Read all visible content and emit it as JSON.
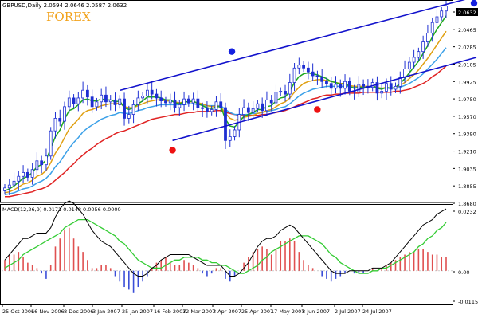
{
  "header": {
    "symbol_info": "GBPUSD,Daily  2.0594 2.0646 2.0587 2.0632",
    "brand": "FOREX"
  },
  "colors": {
    "background": "#ffffff",
    "frame": "#000000",
    "grid": "#c0c0c0",
    "candle": "#1e2fd2",
    "channel": "#1212cc",
    "ma_fast": "#1ea81e",
    "ma_mid": "#e0a012",
    "ma_slow": "#3aa0e8",
    "ma_slowest": "#e02222",
    "macd_line": "#000000",
    "signal_line": "#33cc33",
    "hist_positive": "#e05050",
    "hist_negative": "#3a4ed8",
    "pivot_high": "#1420e0",
    "pivot_low": "#ee1111",
    "brand": "#f2a21a"
  },
  "chart_data": [
    {
      "type": "line",
      "title": "GBPUSD,Daily",
      "ohlc_last": {
        "open": 2.0594,
        "high": 2.0646,
        "low": 2.0587,
        "close": 2.0632
      },
      "ylim": [
        1.86,
        2.066
      ],
      "y_ticks": [
        "2.0632",
        "2.0465",
        "2.0285",
        "2.0105",
        "1.9925",
        "1.9750",
        "1.9570",
        "1.9390",
        "1.9210",
        "1.9035",
        "1.8855",
        "1.8680"
      ],
      "x_ticks": [
        "25 Oct 2006",
        "16 Nov 2006",
        "8 Dec 2006",
        "3 Jan 2007",
        "25 Jan 2007",
        "16 Feb 2007",
        "12 Mar 2007",
        "3 Apr 2007",
        "25 Apr 2007",
        "17 May 2007",
        "8 Jun 2007",
        "2 Jul 2007",
        "24 Jul 2007"
      ],
      "close_series": [
        1.875,
        1.878,
        1.882,
        1.887,
        1.891,
        1.886,
        1.894,
        1.903,
        1.899,
        1.908,
        1.934,
        1.947,
        1.944,
        1.959,
        1.968,
        1.962,
        1.968,
        1.976,
        1.969,
        1.959,
        1.964,
        1.971,
        1.964,
        1.966,
        1.961,
        1.967,
        1.947,
        1.951,
        1.961,
        1.968,
        1.97,
        1.976,
        1.972,
        1.968,
        1.965,
        1.963,
        1.966,
        1.958,
        1.961,
        1.967,
        1.963,
        1.967,
        1.958,
        1.957,
        1.954,
        1.956,
        1.964,
        1.958,
        1.924,
        1.928,
        1.935,
        1.951,
        1.958,
        1.953,
        1.957,
        1.962,
        1.955,
        1.966,
        1.963,
        1.974,
        1.975,
        1.972,
        1.984,
        1.999,
        2.002,
        1.999,
        1.995,
        1.991,
        1.99,
        1.985,
        1.983,
        1.978,
        1.982,
        1.978,
        1.985,
        1.975,
        1.974,
        1.982,
        1.98,
        1.979,
        1.984,
        1.973,
        1.975,
        1.983,
        1.977,
        1.98,
        1.989,
        1.998,
        2.005,
        2.01,
        2.016,
        2.026,
        2.035,
        2.046,
        2.052,
        2.058,
        2.063
      ],
      "moving_averages": {
        "fast": [
          1.872,
          1.874,
          1.877,
          1.881,
          1.885,
          1.887,
          1.891,
          1.897,
          1.899,
          1.904,
          1.916,
          1.928,
          1.935,
          1.946,
          1.955,
          1.957,
          1.961,
          1.966,
          1.967,
          1.965,
          1.965,
          1.967,
          1.966,
          1.966,
          1.964,
          1.965,
          1.958,
          1.956,
          1.958,
          1.962,
          1.965,
          1.969,
          1.969,
          1.969,
          1.968,
          1.966,
          1.966,
          1.963,
          1.962,
          1.964,
          1.964,
          1.965,
          1.962,
          1.96,
          1.958,
          1.957,
          1.959,
          1.959,
          1.946,
          1.939,
          1.938,
          1.943,
          1.949,
          1.951,
          1.953,
          1.956,
          1.956,
          1.959,
          1.96,
          1.965,
          1.968,
          1.969,
          1.975,
          1.984,
          1.99,
          1.993,
          1.994,
          1.993,
          1.992,
          1.99,
          1.988,
          1.985,
          1.984,
          1.982,
          1.983,
          1.98,
          1.978,
          1.979,
          1.979,
          1.979,
          1.981,
          1.978,
          1.977,
          1.979,
          1.978,
          1.979,
          1.983,
          1.988,
          1.994,
          2.0,
          2.006,
          2.014,
          2.022,
          2.031,
          2.039,
          2.046,
          2.053
        ],
        "mid": [
          1.87,
          1.871,
          1.873,
          1.876,
          1.879,
          1.88,
          1.883,
          1.887,
          1.889,
          1.893,
          1.901,
          1.911,
          1.918,
          1.927,
          1.936,
          1.941,
          1.946,
          1.952,
          1.955,
          1.956,
          1.958,
          1.96,
          1.961,
          1.962,
          1.962,
          1.963,
          1.959,
          1.958,
          1.958,
          1.96,
          1.962,
          1.964,
          1.965,
          1.966,
          1.966,
          1.965,
          1.965,
          1.964,
          1.963,
          1.964,
          1.964,
          1.964,
          1.963,
          1.962,
          1.96,
          1.959,
          1.96,
          1.959,
          1.952,
          1.947,
          1.945,
          1.946,
          1.948,
          1.949,
          1.95,
          1.952,
          1.953,
          1.955,
          1.956,
          1.959,
          1.962,
          1.964,
          1.968,
          1.974,
          1.979,
          1.983,
          1.985,
          1.986,
          1.987,
          1.987,
          1.986,
          1.985,
          1.984,
          1.983,
          1.983,
          1.981,
          1.98,
          1.98,
          1.98,
          1.98,
          1.98,
          1.979,
          1.978,
          1.979,
          1.978,
          1.979,
          1.981,
          1.984,
          1.988,
          1.992,
          1.997,
          2.003,
          2.009,
          2.016,
          2.023,
          2.03,
          2.037
        ],
        "slow": [
          1.868,
          1.869,
          1.87,
          1.872,
          1.874,
          1.875,
          1.877,
          1.88,
          1.882,
          1.885,
          1.89,
          1.897,
          1.902,
          1.909,
          1.916,
          1.922,
          1.927,
          1.933,
          1.937,
          1.94,
          1.943,
          1.946,
          1.948,
          1.95,
          1.951,
          1.953,
          1.952,
          1.952,
          1.953,
          1.955,
          1.956,
          1.958,
          1.959,
          1.96,
          1.961,
          1.961,
          1.961,
          1.961,
          1.961,
          1.961,
          1.962,
          1.962,
          1.961,
          1.961,
          1.96,
          1.96,
          1.96,
          1.96,
          1.956,
          1.953,
          1.951,
          1.951,
          1.951,
          1.951,
          1.952,
          1.952,
          1.953,
          1.954,
          1.955,
          1.956,
          1.958,
          1.959,
          1.962,
          1.966,
          1.97,
          1.973,
          1.975,
          1.977,
          1.978,
          1.979,
          1.98,
          1.98,
          1.98,
          1.98,
          1.98,
          1.98,
          1.979,
          1.979,
          1.979,
          1.979,
          1.979,
          1.979,
          1.978,
          1.978,
          1.978,
          1.978,
          1.979,
          1.981,
          1.983,
          1.986,
          1.989,
          1.993,
          1.998,
          2.003,
          2.008,
          2.014,
          2.02
        ],
        "slowest": [
          1.866,
          1.866,
          1.867,
          1.868,
          1.869,
          1.87,
          1.871,
          1.873,
          1.874,
          1.876,
          1.879,
          1.883,
          1.887,
          1.891,
          1.896,
          1.9,
          1.905,
          1.909,
          1.913,
          1.916,
          1.92,
          1.923,
          1.926,
          1.928,
          1.931,
          1.933,
          1.934,
          1.936,
          1.938,
          1.94,
          1.942,
          1.944,
          1.946,
          1.947,
          1.948,
          1.949,
          1.95,
          1.951,
          1.951,
          1.952,
          1.953,
          1.953,
          1.954,
          1.954,
          1.954,
          1.954,
          1.955,
          1.955,
          1.953,
          1.952,
          1.951,
          1.95,
          1.95,
          1.95,
          1.95,
          1.95,
          1.951,
          1.951,
          1.952,
          1.953,
          1.954,
          1.955,
          1.957,
          1.959,
          1.961,
          1.963,
          1.965,
          1.967,
          1.968,
          1.97,
          1.971,
          1.971,
          1.972,
          1.972,
          1.973,
          1.973,
          1.973,
          1.973,
          1.974,
          1.974,
          1.974,
          1.974,
          1.974,
          1.974,
          1.974,
          1.975,
          1.975,
          1.976,
          1.977,
          1.979,
          1.981,
          1.983,
          1.986,
          1.99,
          1.993,
          1.997,
          2.001
        ]
      },
      "channel": {
        "upper_start": [
          0.25,
          1.976
        ],
        "upper_end": [
          1.0,
          2.073
        ],
        "lower_start": [
          0.36,
          1.924
        ],
        "lower_end": [
          1.0,
          2.01
        ]
      },
      "pivots": [
        {
          "type": "high",
          "x": 0.485,
          "y": 2.016
        },
        {
          "type": "low",
          "x": 0.36,
          "y": 1.914
        },
        {
          "type": "high",
          "x": 0.995,
          "y": 2.066
        },
        {
          "type": "low",
          "x": 0.665,
          "y": 1.956
        }
      ],
      "grid": false
    },
    {
      "type": "bar",
      "title": "MACD(12,26,9) 0.0171 0.0148 0.0056 0.0000",
      "ylim": [
        -0.0125,
        0.0245
      ],
      "y_ticks": [
        "0.0232",
        "0.00",
        "-0.0115"
      ],
      "histogram": [
        0.004,
        0.006,
        0.006,
        0.007,
        0.005,
        0.003,
        0.002,
        0.001,
        -0.001,
        -0.003,
        0.002,
        0.009,
        0.012,
        0.015,
        0.016,
        0.012,
        0.009,
        0.007,
        0.004,
        0.001,
        0.001,
        0.002,
        0.002,
        0.001,
        -0.002,
        -0.004,
        -0.006,
        -0.007,
        -0.008,
        -0.006,
        -0.004,
        -0.002,
        0.001,
        0.003,
        0.004,
        0.005,
        0.003,
        0.002,
        0.002,
        0.004,
        0.003,
        0.002,
        0.001,
        -0.001,
        -0.002,
        -0.001,
        0.001,
        0.001,
        -0.003,
        -0.004,
        -0.002,
        0.0,
        0.003,
        0.005,
        0.007,
        0.008,
        0.009,
        0.008,
        0.006,
        0.008,
        0.011,
        0.011,
        0.012,
        0.011,
        0.007,
        0.004,
        0.002,
        0.001,
        0.0,
        -0.002,
        -0.003,
        -0.004,
        -0.003,
        -0.002,
        -0.001,
        0.0,
        -0.001,
        -0.001,
        -0.001,
        0.0,
        0.001,
        0.0,
        0.001,
        0.002,
        0.003,
        0.004,
        0.005,
        0.006,
        0.007,
        0.007,
        0.008,
        0.008,
        0.007,
        0.006,
        0.006,
        0.005,
        0.005
      ],
      "macd_line": [
        0.004,
        0.006,
        0.008,
        0.01,
        0.012,
        0.012,
        0.013,
        0.014,
        0.014,
        0.014,
        0.016,
        0.02,
        0.023,
        0.025,
        0.026,
        0.025,
        0.023,
        0.021,
        0.018,
        0.015,
        0.013,
        0.011,
        0.01,
        0.009,
        0.007,
        0.005,
        0.003,
        0.001,
        -0.001,
        -0.002,
        -0.002,
        -0.001,
        0.001,
        0.002,
        0.004,
        0.005,
        0.006,
        0.006,
        0.006,
        0.006,
        0.006,
        0.005,
        0.004,
        0.003,
        0.002,
        0.002,
        0.002,
        0.002,
        0.0,
        -0.002,
        -0.002,
        -0.001,
        0.001,
        0.003,
        0.006,
        0.009,
        0.011,
        0.012,
        0.012,
        0.013,
        0.015,
        0.016,
        0.017,
        0.016,
        0.014,
        0.012,
        0.01,
        0.008,
        0.006,
        0.004,
        0.002,
        0.0,
        -0.001,
        -0.001,
        -0.001,
        0.0,
        0.0,
        0.0,
        0.0,
        0.0,
        0.001,
        0.001,
        0.001,
        0.002,
        0.003,
        0.005,
        0.007,
        0.009,
        0.011,
        0.013,
        0.015,
        0.017,
        0.018,
        0.019,
        0.021,
        0.022,
        0.023
      ],
      "signal_line": [
        0.001,
        0.002,
        0.003,
        0.004,
        0.006,
        0.007,
        0.008,
        0.009,
        0.01,
        0.011,
        0.012,
        0.013,
        0.014,
        0.016,
        0.017,
        0.018,
        0.019,
        0.019,
        0.019,
        0.018,
        0.017,
        0.016,
        0.015,
        0.014,
        0.013,
        0.011,
        0.01,
        0.008,
        0.006,
        0.004,
        0.003,
        0.002,
        0.001,
        0.001,
        0.001,
        0.002,
        0.003,
        0.004,
        0.004,
        0.005,
        0.005,
        0.005,
        0.005,
        0.004,
        0.004,
        0.003,
        0.003,
        0.002,
        0.002,
        0.001,
        0.0,
        -0.001,
        -0.001,
        0.0,
        0.001,
        0.002,
        0.004,
        0.005,
        0.007,
        0.008,
        0.009,
        0.01,
        0.011,
        0.012,
        0.013,
        0.013,
        0.013,
        0.012,
        0.011,
        0.01,
        0.008,
        0.006,
        0.005,
        0.003,
        0.002,
        0.001,
        0.0,
        -0.001,
        -0.001,
        -0.001,
        0.0,
        0.0,
        0.001,
        0.001,
        0.002,
        0.003,
        0.004,
        0.005,
        0.006,
        0.007,
        0.009,
        0.01,
        0.012,
        0.013,
        0.015,
        0.016,
        0.018
      ],
      "grid": false
    }
  ]
}
